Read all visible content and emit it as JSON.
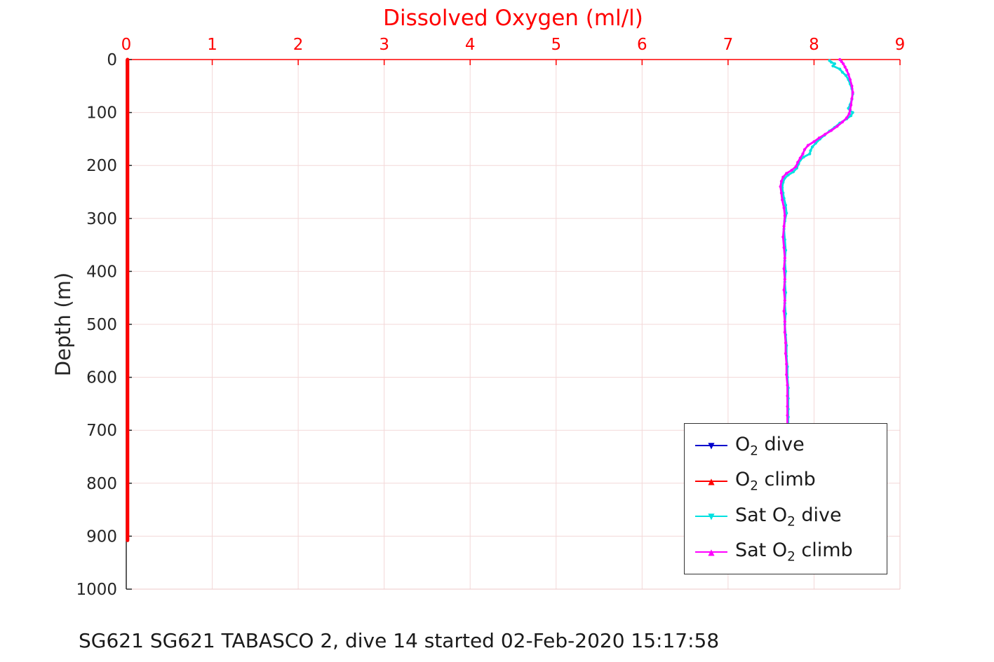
{
  "figure": {
    "caption": "SG621 SG621 TABASCO 2, dive 14 started 02-Feb-2020 15:17:58"
  },
  "chart_data": {
    "type": "line",
    "title": "Dissolved Oxygen (ml/l)",
    "xlabel": "Dissolved Oxygen (ml/l)",
    "ylabel": "Depth (m)",
    "x_axis_position": "top",
    "y_direction": "increasing downward",
    "xlim": [
      0,
      9
    ],
    "ylim": [
      0,
      1000
    ],
    "xticks": [
      0,
      1,
      2,
      3,
      4,
      5,
      6,
      7,
      8,
      9
    ],
    "yticks": [
      0,
      100,
      200,
      300,
      400,
      500,
      600,
      700,
      800,
      900,
      1000
    ],
    "grid": true,
    "legend_position": "lower right",
    "colors": {
      "axis_x": "#ff0000",
      "axis_y": "#262626",
      "grid": "#f3d8d8",
      "box": "#eec9c9",
      "o2_dive": "#0000cc",
      "o2_climb": "#ff0000",
      "sat_o2_dive": "#00e0e0",
      "sat_o2_climb": "#ff00ff"
    },
    "series": [
      {
        "id": "o2-dive",
        "name": "O2 dive",
        "legend": {
          "pre": "O",
          "sub": "2",
          "post": " dive"
        },
        "color_key": "o2_dive",
        "marker": "▼",
        "width": 4,
        "markers": false,
        "points": [
          [
            0.015,
            0
          ],
          [
            0.015,
            880
          ]
        ]
      },
      {
        "id": "o2-climb",
        "name": "O2 climb",
        "legend": {
          "pre": "O",
          "sub": "2",
          "post": " climb"
        },
        "color_key": "o2_climb",
        "marker": "▲",
        "width": 5,
        "markers": false,
        "points": [
          [
            0.015,
            0
          ],
          [
            0.015,
            908
          ]
        ]
      },
      {
        "id": "sat-o2-dive",
        "name": "Sat O2 dive",
        "legend": {
          "pre": "Sat O",
          "sub": "2",
          "post": " dive"
        },
        "color_key": "sat_o2_dive",
        "marker": "▼",
        "width": 2.8,
        "markers": true,
        "points": [
          [
            8.18,
            2
          ],
          [
            8.2,
            5
          ],
          [
            8.24,
            8
          ],
          [
            8.22,
            12
          ],
          [
            8.3,
            18
          ],
          [
            8.33,
            24
          ],
          [
            8.37,
            30
          ],
          [
            8.4,
            38
          ],
          [
            8.42,
            46
          ],
          [
            8.44,
            55
          ],
          [
            8.45,
            65
          ],
          [
            8.44,
            75
          ],
          [
            8.42,
            85
          ],
          [
            8.4,
            92
          ],
          [
            8.42,
            97
          ],
          [
            8.45,
            100
          ],
          [
            8.43,
            106
          ],
          [
            8.38,
            112
          ],
          [
            8.3,
            120
          ],
          [
            8.24,
            128
          ],
          [
            8.18,
            135
          ],
          [
            8.12,
            143
          ],
          [
            8.07,
            150
          ],
          [
            8.02,
            158
          ],
          [
            7.98,
            165
          ],
          [
            7.96,
            172
          ],
          [
            7.95,
            178
          ],
          [
            7.88,
            184
          ],
          [
            7.84,
            190
          ],
          [
            7.82,
            197
          ],
          [
            7.8,
            205
          ],
          [
            7.76,
            212
          ],
          [
            7.7,
            218
          ],
          [
            7.66,
            224
          ],
          [
            7.64,
            232
          ],
          [
            7.63,
            242
          ],
          [
            7.64,
            252
          ],
          [
            7.65,
            262
          ],
          [
            7.67,
            275
          ],
          [
            7.68,
            290
          ],
          [
            7.66,
            305
          ],
          [
            7.65,
            320
          ],
          [
            7.66,
            340
          ],
          [
            7.67,
            360
          ],
          [
            7.66,
            380
          ],
          [
            7.67,
            400
          ],
          [
            7.66,
            420
          ],
          [
            7.67,
            440
          ],
          [
            7.66,
            460
          ],
          [
            7.67,
            480
          ],
          [
            7.66,
            500
          ],
          [
            7.67,
            520
          ],
          [
            7.68,
            540
          ],
          [
            7.68,
            560
          ],
          [
            7.69,
            580
          ],
          [
            7.69,
            600
          ],
          [
            7.7,
            620
          ],
          [
            7.7,
            640
          ],
          [
            7.7,
            660
          ],
          [
            7.7,
            675
          ],
          [
            7.7,
            690
          ],
          [
            7.69,
            720
          ],
          [
            7.68,
            760
          ],
          [
            7.68,
            800
          ],
          [
            7.67,
            850
          ],
          [
            7.67,
            905
          ]
        ]
      },
      {
        "id": "sat-o2-climb",
        "name": "Sat O2 climb",
        "legend": {
          "pre": "Sat O",
          "sub": "2",
          "post": " climb"
        },
        "color_key": "sat_o2_climb",
        "marker": "▲",
        "width": 2.8,
        "markers": true,
        "points": [
          [
            8.3,
            0
          ],
          [
            8.32,
            4
          ],
          [
            8.34,
            8
          ],
          [
            8.36,
            14
          ],
          [
            8.38,
            20
          ],
          [
            8.4,
            28
          ],
          [
            8.42,
            38
          ],
          [
            8.44,
            50
          ],
          [
            8.45,
            62
          ],
          [
            8.44,
            74
          ],
          [
            8.43,
            86
          ],
          [
            8.42,
            95
          ],
          [
            8.41,
            102
          ],
          [
            8.38,
            110
          ],
          [
            8.33,
            118
          ],
          [
            8.27,
            126
          ],
          [
            8.2,
            134
          ],
          [
            8.13,
            141
          ],
          [
            8.06,
            148
          ],
          [
            8.0,
            155
          ],
          [
            7.93,
            162
          ],
          [
            7.89,
            170
          ],
          [
            7.87,
            178
          ],
          [
            7.84,
            186
          ],
          [
            7.81,
            194
          ],
          [
            7.79,
            202
          ],
          [
            7.74,
            209
          ],
          [
            7.68,
            215
          ],
          [
            7.64,
            222
          ],
          [
            7.62,
            230
          ],
          [
            7.61,
            240
          ],
          [
            7.62,
            252
          ],
          [
            7.63,
            265
          ],
          [
            7.65,
            280
          ],
          [
            7.66,
            295
          ],
          [
            7.65,
            315
          ],
          [
            7.64,
            335
          ],
          [
            7.65,
            355
          ],
          [
            7.66,
            375
          ],
          [
            7.65,
            395
          ],
          [
            7.66,
            415
          ],
          [
            7.65,
            435
          ],
          [
            7.66,
            455
          ],
          [
            7.65,
            475
          ],
          [
            7.66,
            495
          ],
          [
            7.66,
            515
          ],
          [
            7.67,
            535
          ],
          [
            7.67,
            555
          ],
          [
            7.68,
            575
          ],
          [
            7.68,
            595
          ],
          [
            7.69,
            615
          ],
          [
            7.69,
            635
          ],
          [
            7.69,
            655
          ],
          [
            7.69,
            672
          ],
          [
            7.69,
            690
          ],
          [
            7.68,
            725
          ],
          [
            7.68,
            765
          ],
          [
            7.67,
            810
          ],
          [
            7.67,
            860
          ],
          [
            7.67,
            905
          ]
        ]
      }
    ]
  }
}
